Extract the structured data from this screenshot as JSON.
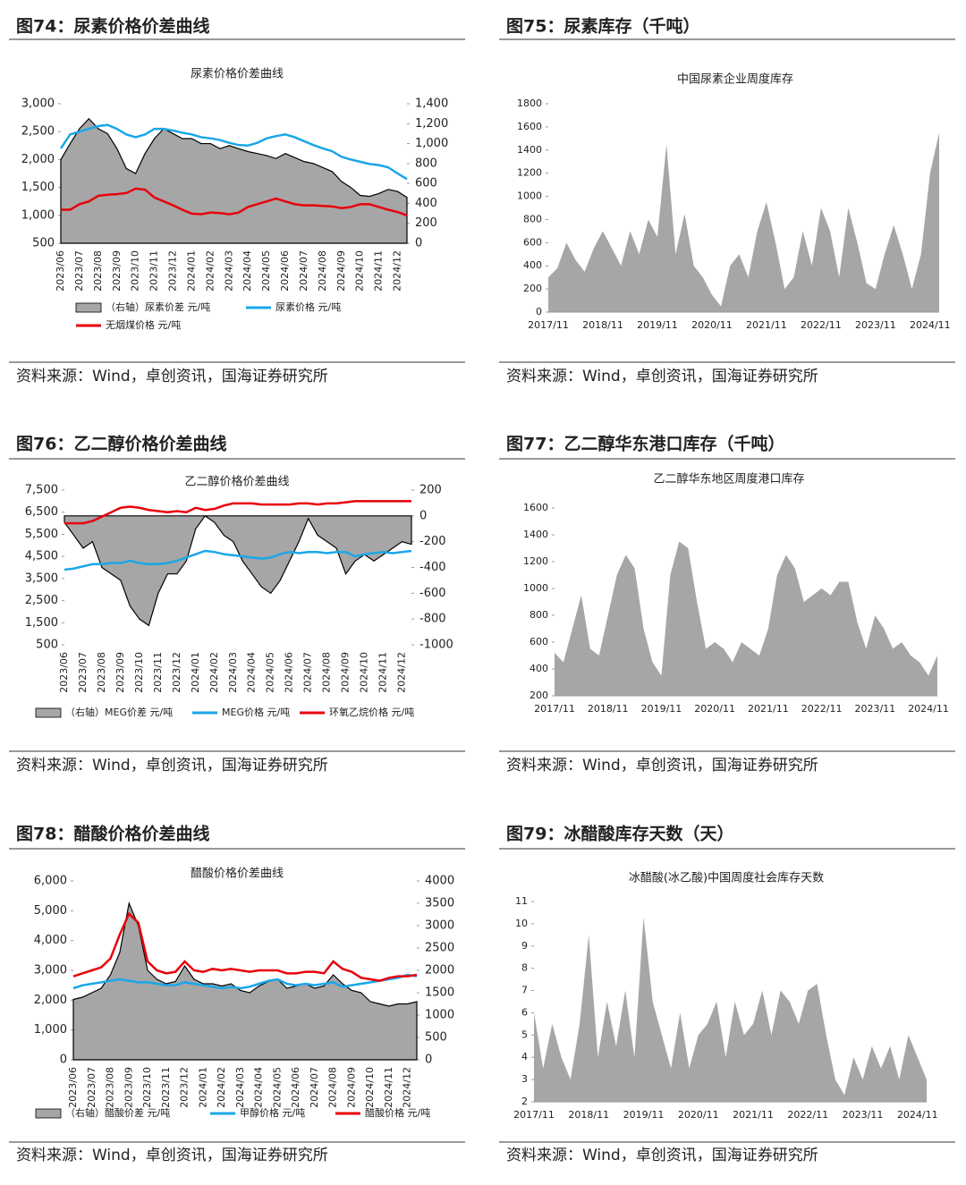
{
  "figures": [
    {
      "heading": "图74：尿素价格价差曲线",
      "source": "资料来源：Wind，卓创资讯，国海证券研究所"
    },
    {
      "heading": "图75：尿素库存（千吨）",
      "source": "资料来源：Wind，卓创资讯，国海证券研究所"
    },
    {
      "heading": "图76：乙二醇价格价差曲线",
      "source": "资料来源：Wind，卓创资讯，国海证券研究所"
    },
    {
      "heading": "图77：乙二醇华东港口库存（千吨）",
      "source": "资料来源：Wind，卓创资讯，国海证券研究所"
    },
    {
      "heading": "图78：醋酸价格价差曲线",
      "source": "资料来源：Wind，卓创资讯，国海证券研究所"
    },
    {
      "heading": "图79：冰醋酸库存天数（天）",
      "source": "资料来源：Wind，卓创资讯，国海证券研究所"
    }
  ],
  "chart_data": [
    {
      "type": "combo",
      "title": "尿素价格价差曲线",
      "categories": [
        "2023/06",
        null,
        "2023/07",
        null,
        "2023/08",
        null,
        "2023/09",
        null,
        "2023/10",
        null,
        "2023/11",
        null,
        "2023/12",
        null,
        "2024/01",
        null,
        "2024/02",
        null,
        "2024/03",
        null,
        "2024/04",
        null,
        "2024/05",
        null,
        "2024/06",
        null,
        "2024/07",
        null,
        "2024/08",
        null,
        "2024/09",
        null,
        "2024/10",
        null,
        "2024/11",
        null,
        "2024/12",
        null
      ],
      "series": [
        {
          "name": "（右轴）尿素价差 元/吨",
          "color": "#a6a6a6",
          "kind": "area",
          "axis": "y2",
          "values": [
            840,
            1000,
            1150,
            1250,
            1150,
            1100,
            950,
            750,
            700,
            900,
            1050,
            1150,
            1100,
            1050,
            1050,
            1000,
            1000,
            950,
            980,
            950,
            920,
            900,
            880,
            850,
            900,
            860,
            820,
            800,
            760,
            720,
            620,
            560,
            480,
            470,
            500,
            540,
            520,
            460
          ]
        },
        {
          "name": "尿素价格 元/吨",
          "color": "#1aa7e8",
          "kind": "line",
          "values": [
            2200,
            2450,
            2500,
            2550,
            2600,
            2620,
            2550,
            2450,
            2400,
            2450,
            2550,
            2550,
            2520,
            2480,
            2450,
            2400,
            2380,
            2350,
            2300,
            2260,
            2250,
            2300,
            2380,
            2420,
            2450,
            2400,
            2330,
            2260,
            2200,
            2150,
            2050,
            2000,
            1960,
            1920,
            1900,
            1860,
            1750,
            1650
          ]
        },
        {
          "name": "无烟煤价格 元/吨",
          "color": "#e8000b",
          "kind": "line",
          "values": [
            1100,
            1100,
            1200,
            1250,
            1350,
            1370,
            1380,
            1400,
            1480,
            1460,
            1320,
            1250,
            1180,
            1100,
            1030,
            1020,
            1050,
            1040,
            1020,
            1050,
            1150,
            1200,
            1250,
            1300,
            1250,
            1200,
            1180,
            1180,
            1170,
            1160,
            1130,
            1150,
            1200,
            1200,
            1150,
            1100,
            1060,
            1000
          ]
        }
      ],
      "ylim": [
        500,
        3000
      ],
      "yticks": [
        500,
        {
          "value": 1000,
          "label": "1,000"
        },
        {
          "value": 1500,
          "label": "1,500"
        },
        {
          "value": 2000,
          "label": "2,000"
        },
        {
          "value": 2500,
          "label": "2,500"
        },
        {
          "value": 3000,
          "label": "3,000"
        }
      ],
      "y2lim": [
        0,
        1400
      ],
      "y2ticks": [
        0,
        200,
        400,
        600,
        800,
        {
          "value": 1000,
          "label": "1,000"
        },
        {
          "value": 1200,
          "label": "1,200"
        },
        {
          "value": 1400,
          "label": "1,400"
        }
      ]
    },
    {
      "type": "area",
      "title": "中国尿素企业周度库存",
      "categories": [
        "2017/11",
        null,
        null,
        null,
        null,
        null,
        "2018/11",
        null,
        null,
        null,
        null,
        null,
        "2019/11",
        null,
        null,
        null,
        null,
        null,
        "2020/11",
        null,
        null,
        null,
        null,
        null,
        "2021/11",
        null,
        null,
        null,
        null,
        null,
        "2022/11",
        null,
        null,
        null,
        null,
        null,
        "2023/11",
        null,
        null,
        null,
        null,
        null,
        "2024/11",
        null
      ],
      "values": [
        300,
        380,
        600,
        450,
        350,
        550,
        700,
        550,
        400,
        700,
        500,
        800,
        650,
        1450,
        500,
        850,
        400,
        300,
        150,
        50,
        400,
        500,
        300,
        700,
        950,
        600,
        200,
        300,
        700,
        400,
        900,
        700,
        300,
        900,
        600,
        250,
        200,
        500,
        750,
        500,
        200,
        500,
        1200,
        1550
      ],
      "color": "#a6a6a6",
      "ylim": [
        0,
        1800
      ],
      "yticks": [
        0,
        200,
        400,
        600,
        800,
        1000,
        1200,
        1400,
        1600,
        1800
      ]
    },
    {
      "type": "combo",
      "title": "乙二醇价格价差曲线",
      "categories": [
        "2023/06",
        null,
        "2023/07",
        null,
        "2023/08",
        null,
        "2023/09",
        null,
        "2023/10",
        null,
        "2023/11",
        null,
        "2023/12",
        null,
        "2024/01",
        null,
        "2024/02",
        null,
        "2024/03",
        null,
        "2024/04",
        null,
        "2024/05",
        null,
        "2024/06",
        null,
        "2024/07",
        null,
        "2024/08",
        null,
        "2024/09",
        null,
        "2024/10",
        null,
        "2024/11",
        null,
        "2024/12",
        null
      ],
      "series": [
        {
          "name": "（右轴）MEG价差 元/吨",
          "color": "#a6a6a6",
          "kind": "area",
          "axis": "y2",
          "values": [
            -50,
            -150,
            -250,
            -200,
            -400,
            -450,
            -500,
            -700,
            -800,
            -850,
            -600,
            -450,
            -450,
            -350,
            -100,
            0,
            -50,
            -150,
            -200,
            -350,
            -450,
            -550,
            -600,
            -500,
            -350,
            -200,
            -20,
            -150,
            -200,
            -250,
            -450,
            -350,
            -300,
            -350,
            -300,
            -250,
            -200,
            -220
          ]
        },
        {
          "name": "MEG价格 元/吨",
          "color": "#1aa7e8",
          "kind": "line",
          "values": [
            3900,
            3950,
            4050,
            4150,
            4150,
            4200,
            4200,
            4300,
            4200,
            4150,
            4150,
            4200,
            4300,
            4450,
            4600,
            4750,
            4700,
            4600,
            4550,
            4500,
            4450,
            4400,
            4450,
            4600,
            4700,
            4650,
            4700,
            4700,
            4650,
            4700,
            4700,
            4500,
            4600,
            4650,
            4700,
            4650,
            4700,
            4750
          ]
        },
        {
          "name": "环氧乙烷价格 元/吨",
          "color": "#e8000b",
          "kind": "line",
          "values": [
            6000,
            6000,
            6000,
            6100,
            6300,
            6500,
            6700,
            6750,
            6700,
            6600,
            6550,
            6500,
            6550,
            6500,
            6700,
            6600,
            6650,
            6800,
            6900,
            6900,
            6900,
            6850,
            6850,
            6850,
            6850,
            6900,
            6900,
            6850,
            6900,
            6900,
            6950,
            7000,
            7000,
            7000,
            7000,
            7000,
            7000,
            7000
          ]
        }
      ],
      "ylim": [
        500,
        7500
      ],
      "yticks": [
        500,
        {
          "value": 1500,
          "label": "1,500"
        },
        {
          "value": 2500,
          "label": "2,500"
        },
        {
          "value": 3500,
          "label": "3,500"
        },
        {
          "value": 4500,
          "label": "4,500"
        },
        {
          "value": 5500,
          "label": "5,500"
        },
        {
          "value": 6500,
          "label": "6,500"
        },
        {
          "value": 7500,
          "label": "7,500"
        }
      ],
      "y2lim": [
        -1000,
        200
      ],
      "y2ticks": [
        -1000,
        -800,
        -600,
        -400,
        -200,
        0,
        200
      ]
    },
    {
      "type": "area",
      "title": "乙二醇华东地区周度港口库存",
      "categories": [
        "2017/11",
        null,
        null,
        null,
        null,
        null,
        "2018/11",
        null,
        null,
        null,
        null,
        null,
        "2019/11",
        null,
        null,
        null,
        null,
        null,
        "2020/11",
        null,
        null,
        null,
        null,
        null,
        "2021/11",
        null,
        null,
        null,
        null,
        null,
        "2022/11",
        null,
        null,
        null,
        null,
        null,
        "2023/11",
        null,
        null,
        null,
        null,
        null,
        "2024/11",
        null
      ],
      "values": [
        520,
        450,
        700,
        950,
        550,
        500,
        800,
        1100,
        1250,
        1150,
        700,
        450,
        350,
        1100,
        1350,
        1300,
        900,
        550,
        600,
        550,
        450,
        600,
        550,
        500,
        700,
        1100,
        1250,
        1150,
        900,
        950,
        1000,
        950,
        1050,
        1050,
        750,
        550,
        800,
        700,
        550,
        600,
        500,
        450,
        350,
        500
      ],
      "color": "#a6a6a6",
      "ylim": [
        200,
        1600
      ],
      "yticks": [
        200,
        400,
        600,
        800,
        1000,
        1200,
        1400,
        1600
      ]
    },
    {
      "type": "combo",
      "title": "醋酸价格价差曲线",
      "categories": [
        "2023/06",
        null,
        "2023/07",
        null,
        "2023/08",
        null,
        "2023/09",
        null,
        "2023/10",
        null,
        "2023/11",
        null,
        "2023/12",
        null,
        "2024/01",
        null,
        "2024/02",
        null,
        "2024/03",
        null,
        "2024/04",
        null,
        "2024/05",
        null,
        "2024/06",
        null,
        "2024/07",
        null,
        "2024/08",
        null,
        "2024/09",
        null,
        "2024/10",
        null,
        "2024/11",
        null,
        "2024/12",
        null
      ],
      "series": [
        {
          "name": "（右轴）醋酸价差 元/吨",
          "color": "#a6a6a6",
          "kind": "area",
          "axis": "y2",
          "values": [
            1350,
            1400,
            1500,
            1600,
            1900,
            2400,
            3500,
            3000,
            2000,
            1800,
            1700,
            1750,
            2100,
            1800,
            1700,
            1700,
            1650,
            1700,
            1550,
            1500,
            1650,
            1750,
            1800,
            1600,
            1650,
            1700,
            1600,
            1650,
            1900,
            1700,
            1550,
            1500,
            1300,
            1250,
            1200,
            1250,
            1250,
            1300
          ]
        },
        {
          "name": "甲醇价格 元/吨",
          "color": "#1aa7e8",
          "kind": "line",
          "values": [
            2400,
            2500,
            2550,
            2600,
            2650,
            2700,
            2650,
            2600,
            2600,
            2550,
            2500,
            2500,
            2600,
            2550,
            2500,
            2450,
            2400,
            2450,
            2400,
            2450,
            2550,
            2650,
            2700,
            2550,
            2500,
            2550,
            2500,
            2550,
            2600,
            2450,
            2500,
            2550,
            2600,
            2650,
            2700,
            2750,
            2850,
            2800
          ]
        },
        {
          "name": "醋酸价格 元/吨",
          "color": "#e8000b",
          "kind": "line",
          "values": [
            2800,
            2900,
            3000,
            3100,
            3400,
            4200,
            4900,
            4600,
            3300,
            3000,
            2900,
            2950,
            3300,
            3000,
            2950,
            3050,
            3000,
            3050,
            3000,
            2950,
            3000,
            3000,
            3000,
            2900,
            2900,
            2950,
            2950,
            2900,
            3300,
            3050,
            2950,
            2750,
            2700,
            2650,
            2750,
            2800,
            2800,
            2850
          ]
        }
      ],
      "ylim": [
        0,
        6000
      ],
      "yticks": [
        0,
        {
          "value": 1000,
          "label": "1,000"
        },
        {
          "value": 2000,
          "label": "2,000"
        },
        {
          "value": 3000,
          "label": "3,000"
        },
        {
          "value": 4000,
          "label": "4,000"
        },
        {
          "value": 5000,
          "label": "5,000"
        },
        {
          "value": 6000,
          "label": "6,000"
        }
      ],
      "y2lim": [
        0,
        4000
      ],
      "y2ticks": [
        0,
        500,
        1000,
        1500,
        2000,
        2500,
        3000,
        3500,
        4000
      ]
    },
    {
      "type": "area",
      "title": "冰醋酸(冰乙酸)中国周度社会库存天数",
      "categories": [
        "2017/11",
        null,
        null,
        null,
        null,
        null,
        "2018/11",
        null,
        null,
        null,
        null,
        null,
        "2019/11",
        null,
        null,
        null,
        null,
        null,
        "2020/11",
        null,
        null,
        null,
        null,
        null,
        "2021/11",
        null,
        null,
        null,
        null,
        null,
        "2022/11",
        null,
        null,
        null,
        null,
        null,
        "2023/11",
        null,
        null,
        null,
        null,
        null,
        "2024/11",
        null
      ],
      "values": [
        6,
        3.5,
        5.5,
        4,
        3,
        5.5,
        9.5,
        4,
        6.5,
        4.5,
        7,
        4,
        10.3,
        6.5,
        5,
        3.5,
        6,
        3.5,
        5,
        5.5,
        6.5,
        4,
        6.5,
        5,
        5.5,
        7,
        5,
        7,
        6.5,
        5.5,
        7,
        7.3,
        5,
        3,
        2.3,
        4,
        3,
        4.5,
        3.5,
        4.5,
        3,
        5,
        4,
        3
      ],
      "color": "#a6a6a6",
      "ylim": [
        2,
        11
      ],
      "yticks": [
        2,
        3,
        4,
        5,
        6,
        7,
        8,
        9,
        10,
        11
      ]
    }
  ]
}
